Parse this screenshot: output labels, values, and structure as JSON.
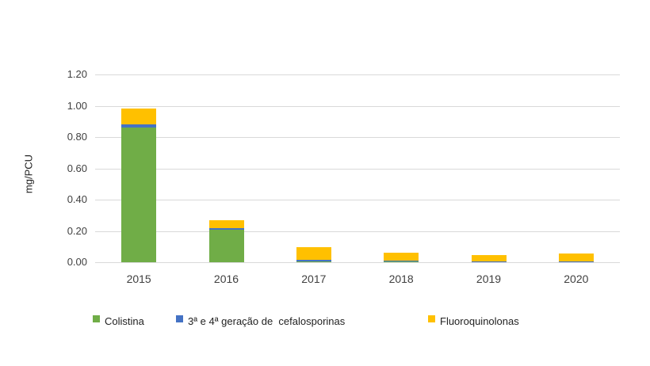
{
  "chart_data": {
    "type": "bar",
    "stacked": true,
    "title": "",
    "xlabel": "",
    "ylabel": "mg/PCU",
    "ylim": [
      0,
      1.2
    ],
    "yticks": [
      "0.00",
      "0.20",
      "0.40",
      "0.60",
      "0.80",
      "1.00",
      "1.20"
    ],
    "categories": [
      "2015",
      "2016",
      "2017",
      "2018",
      "2019",
      "2020"
    ],
    "series": [
      {
        "name": "Colistina",
        "color": "#70ad47",
        "values": [
          0.86,
          0.21,
          0.005,
          0.002,
          0.0,
          0.0
        ]
      },
      {
        "name": "3ª e 4ª geração de  cefalosporinas",
        "color": "#4472c4",
        "values": [
          0.02,
          0.006,
          0.012,
          0.007,
          0.001,
          0.001
        ]
      },
      {
        "name": "Fluoroquinolonas",
        "color": "#ffc000",
        "values": [
          0.1,
          0.05,
          0.08,
          0.05,
          0.039,
          0.05
        ]
      }
    ],
    "grid": true,
    "legend_position": "bottom"
  }
}
